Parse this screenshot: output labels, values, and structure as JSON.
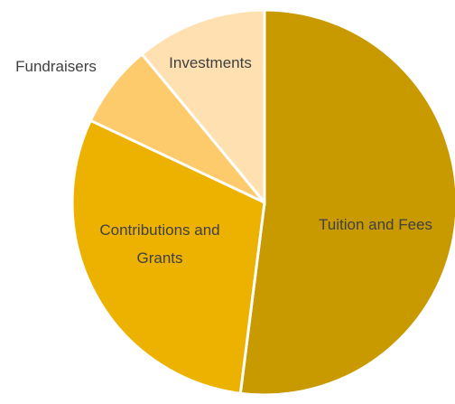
{
  "chart_data": {
    "type": "pie",
    "title": "",
    "start_angle_deg": 0,
    "direction": "clockwise",
    "slices": [
      {
        "label": "Tuition and Fees",
        "value": 52,
        "color": "#C89A00"
      },
      {
        "label": "Contributions and Grants",
        "value": 30,
        "color": "#EDB200"
      },
      {
        "label": "Fundraisers",
        "value": 7,
        "color": "#FECB6C"
      },
      {
        "label": "Investments",
        "value": 11,
        "color": "#FFE0B0"
      }
    ]
  }
}
